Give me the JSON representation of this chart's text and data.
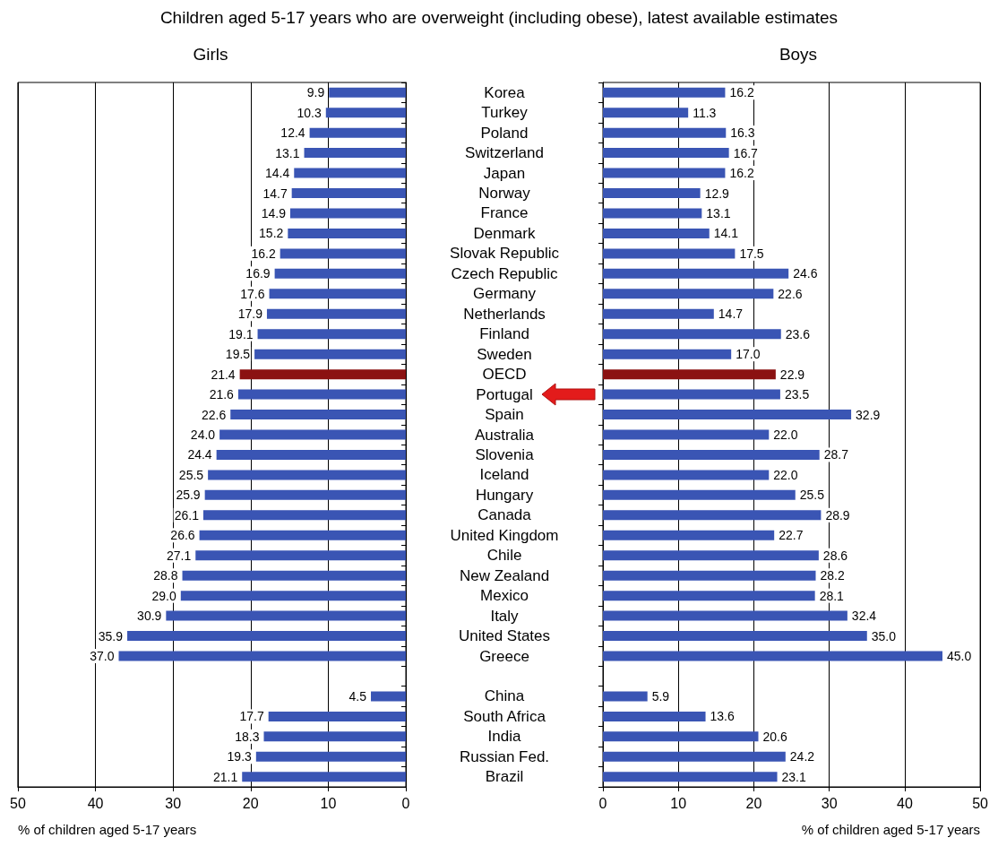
{
  "chart_data": [
    {
      "type": "bar",
      "orientation": "horizontal",
      "title": "Children aged 5-17 years who are overweight (including obese), latest available estimates",
      "subtitle": "Girls",
      "xlabel": "% of children aged 5-17 years",
      "categories": [
        null,
        null,
        null,
        null,
        null,
        null,
        null,
        null,
        null,
        null,
        null,
        null,
        null,
        null,
        null,
        null,
        null,
        null,
        null,
        null,
        null,
        null,
        null,
        null,
        null,
        null,
        null,
        null,
        null,
        null,
        null,
        null,
        null,
        null,
        null
      ],
      "values": [
        9.9,
        10.3,
        12.4,
        13.1,
        14.4,
        14.7,
        14.9,
        15.2,
        16.2,
        16.9,
        17.6,
        17.9,
        19.1,
        19.5,
        21.4,
        21.6,
        22.6,
        24.0,
        24.4,
        25.5,
        25.9,
        26.1,
        26.6,
        27.1,
        28.8,
        29.0,
        30.9,
        35.9,
        37.0,
        null,
        4.5,
        17.7,
        18.3,
        19.3,
        21.1
      ],
      "value_labels": [
        "9.9",
        "10.3",
        "12.4",
        "13.1",
        "14.4",
        "14.7",
        "14.9",
        "15.2",
        "16.2",
        "16.9",
        "17.6",
        "17.9",
        "19.1",
        "19.5",
        "21.4",
        "21.6",
        "22.6",
        "24.0",
        "24.4",
        "25.5",
        "25.9",
        "26.1",
        "26.6",
        "27.1",
        "28.8",
        "29.0",
        "30.9",
        "35.9",
        "37.0",
        null,
        "4.5",
        "17.7",
        "18.3",
        "19.3",
        "21.1"
      ],
      "colors": [
        "#3a55b4",
        "#3a55b4",
        "#3a55b4",
        "#3a55b4",
        "#3a55b4",
        "#3a55b4",
        "#3a55b4",
        "#3a55b4",
        "#3a55b4",
        "#3a55b4",
        "#3a55b4",
        "#3a55b4",
        "#3a55b4",
        "#3a55b4",
        "#8b1212",
        "#3a55b4",
        "#3a55b4",
        "#3a55b4",
        "#3a55b4",
        "#3a55b4",
        "#3a55b4",
        "#3a55b4",
        "#3a55b4",
        "#3a55b4",
        "#3a55b4",
        "#3a55b4",
        "#3a55b4",
        "#3a55b4",
        "#3a55b4",
        "#3a55b4",
        "#3a55b4",
        "#3a55b4",
        "#3a55b4",
        "#3a55b4",
        "#3a55b4"
      ],
      "xlim": [
        50,
        0
      ],
      "xticks": [
        50,
        40,
        30,
        20,
        10,
        0
      ],
      "grid": "x"
    },
    {
      "type": "bar",
      "orientation": "horizontal",
      "title": "Boys",
      "xlabel": "% of children aged 5-17 years",
      "categories": [
        "Korea",
        "Turkey",
        "Poland",
        "Switzerland",
        "Japan",
        "Norway",
        "France",
        "Denmark",
        "Slovak Republic",
        "Czech Republic",
        "Germany",
        "Netherlands",
        "Finland",
        "Sweden",
        "OECD",
        "Portugal",
        "Spain",
        "Australia",
        "Slovenia",
        "Iceland",
        "Hungary",
        "Canada",
        "United Kingdom",
        "Chile",
        "New Zealand",
        "Mexico",
        "Italy",
        "United States",
        "Greece",
        null,
        "China",
        "South Africa",
        "India",
        "Russian Fed.",
        "Brazil"
      ],
      "values": [
        16.2,
        11.3,
        16.3,
        16.7,
        16.2,
        12.9,
        13.1,
        14.1,
        17.5,
        24.6,
        22.6,
        14.7,
        23.6,
        17.0,
        22.9,
        23.5,
        32.9,
        22.0,
        28.7,
        22.0,
        25.5,
        28.9,
        22.7,
        28.6,
        28.2,
        28.1,
        32.4,
        35.0,
        45.0,
        null,
        5.9,
        13.6,
        20.6,
        24.2,
        23.1
      ],
      "value_labels": [
        "16.2",
        "11.3",
        "16.3",
        "16.7",
        "16.2",
        "12.9",
        "13.1",
        "14.1",
        "17.5",
        "24.6",
        "22.6",
        "14.7",
        "23.6",
        "17.0",
        "22.9",
        "23.5",
        "32.9",
        "22.0",
        "28.7",
        "22.0",
        "25.5",
        "28.9",
        "22.7",
        "28.6",
        "28.2",
        "28.1",
        "32.4",
        "35.0",
        "45.0",
        null,
        "5.9",
        "13.6",
        "20.6",
        "24.2",
        "23.1"
      ],
      "colors": [
        "#3a55b4",
        "#3a55b4",
        "#3a55b4",
        "#3a55b4",
        "#3a55b4",
        "#3a55b4",
        "#3a55b4",
        "#3a55b4",
        "#3a55b4",
        "#3a55b4",
        "#3a55b4",
        "#3a55b4",
        "#3a55b4",
        "#3a55b4",
        "#8b1212",
        "#3a55b4",
        "#3a55b4",
        "#3a55b4",
        "#3a55b4",
        "#3a55b4",
        "#3a55b4",
        "#3a55b4",
        "#3a55b4",
        "#3a55b4",
        "#3a55b4",
        "#3a55b4",
        "#3a55b4",
        "#3a55b4",
        "#3a55b4",
        "#3a55b4",
        "#3a55b4",
        "#3a55b4",
        "#3a55b4",
        "#3a55b4",
        "#3a55b4"
      ],
      "xlim": [
        0,
        50
      ],
      "xticks": [
        0,
        10,
        20,
        30,
        40,
        50
      ],
      "grid": "x"
    }
  ]
}
